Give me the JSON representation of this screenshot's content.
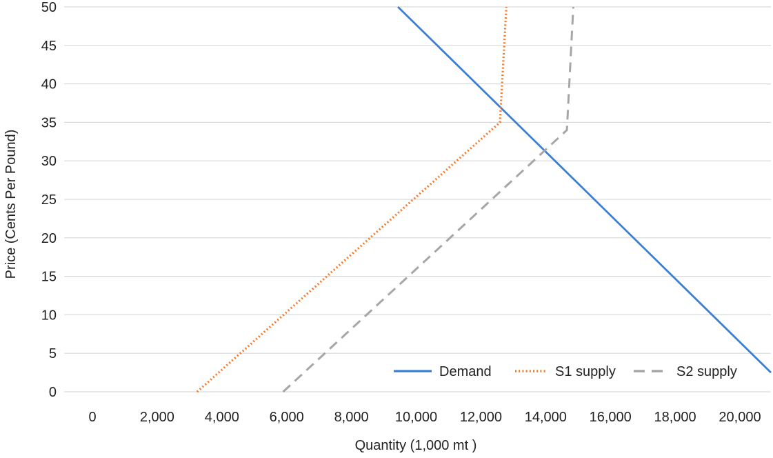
{
  "chart_data": {
    "type": "line",
    "xlabel": "Quantity (1,000 mt )",
    "ylabel": "Price (Cents Per Pound)",
    "x_tick_labels": [
      "0",
      "2,000",
      "4,000",
      "6,000",
      "8,000",
      "10,000",
      "12,000",
      "14,000",
      "16,000",
      "18,000",
      "20,000"
    ],
    "y_tick_labels": [
      "0",
      "5",
      "10",
      "15",
      "20",
      "25",
      "30",
      "35",
      "40",
      "45",
      "50"
    ],
    "ylim": [
      0,
      50
    ],
    "grid": "horizontal",
    "legend_position": "bottom-right",
    "series": [
      {
        "name": "Demand",
        "style": "solid",
        "color": "#3b7fd4",
        "points": [
          [
            9300,
            50
          ],
          [
            21000,
            2.5
          ]
        ]
      },
      {
        "name": "S1 supply",
        "style": "dotted",
        "color": "#f47a2a",
        "points": [
          [
            3000,
            0
          ],
          [
            12500,
            35
          ],
          [
            12700,
            50
          ]
        ]
      },
      {
        "name": "S2 supply",
        "style": "dashed",
        "color": "#a6a6a6",
        "points": [
          [
            5700,
            0
          ],
          [
            14600,
            34
          ],
          [
            14800,
            50
          ]
        ]
      }
    ]
  }
}
